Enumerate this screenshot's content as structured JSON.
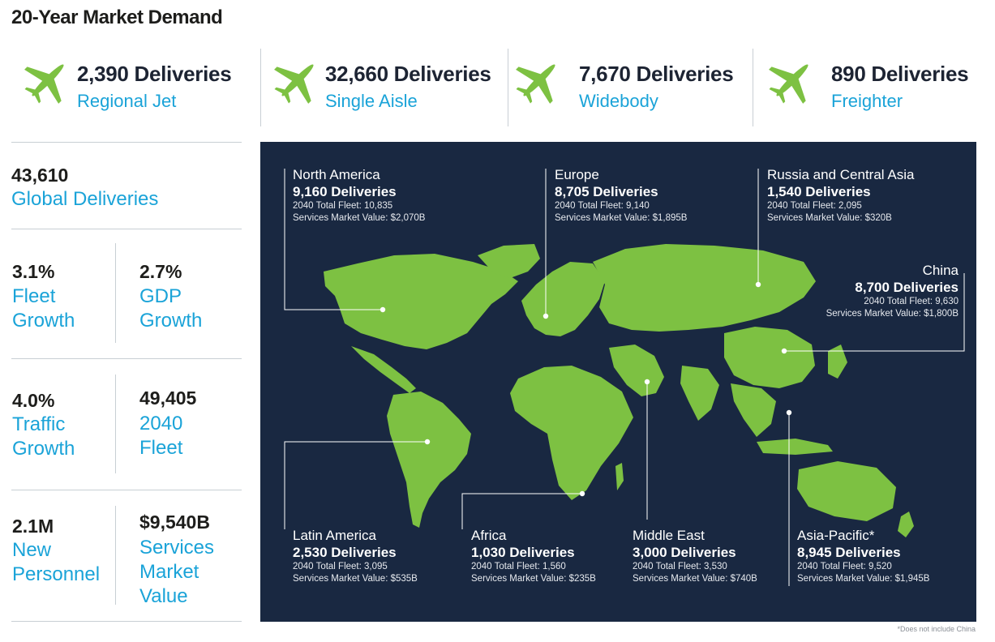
{
  "title": "20-Year Market Demand",
  "categories": [
    {
      "deliveries": "2,390 Deliveries",
      "label": "Regional Jet"
    },
    {
      "deliveries": "32,660 Deliveries",
      "label": "Single Aisle"
    },
    {
      "deliveries": "7,670 Deliveries",
      "label": "Widebody"
    },
    {
      "deliveries": "890 Deliveries",
      "label": "Freighter"
    }
  ],
  "stats": {
    "global": {
      "value": "43,610",
      "label": "Global Deliveries"
    },
    "fleet_growth": {
      "value": "3.1%",
      "line1": "Fleet",
      "line2": "Growth"
    },
    "gdp_growth": {
      "value": "2.7%",
      "line1": "GDP",
      "line2": "Growth"
    },
    "traffic_growth": {
      "value": "4.0%",
      "line1": "Traffic",
      "line2": "Growth"
    },
    "fleet_2040": {
      "value": "49,405",
      "line1": "2040",
      "line2": "Fleet"
    },
    "personnel": {
      "value": "2.1M",
      "line1": "New",
      "line2": "Personnel"
    },
    "services": {
      "value": "$9,540B",
      "line1": "Services",
      "line2": "Market",
      "line3": "Value"
    }
  },
  "regions": {
    "north_america": {
      "name": "North America",
      "deliveries": "9,160 Deliveries",
      "fleet": "2040 Total Fleet: 10,835",
      "services": "Services Market Value: $2,070B"
    },
    "europe": {
      "name": "Europe",
      "deliveries": "8,705 Deliveries",
      "fleet": "2040 Total Fleet: 9,140",
      "services": "Services Market Value: $1,895B"
    },
    "russia": {
      "name": "Russia and Central Asia",
      "deliveries": "1,540 Deliveries",
      "fleet": "2040 Total Fleet: 2,095",
      "services": "Services Market Value: $320B"
    },
    "china": {
      "name": "China",
      "deliveries": "8,700 Deliveries",
      "fleet": "2040 Total Fleet: 9,630",
      "services": "Services Market Value: $1,800B"
    },
    "latin_america": {
      "name": "Latin America",
      "deliveries": "2,530 Deliveries",
      "fleet": "2040 Total Fleet: 3,095",
      "services": "Services Market Value: $535B"
    },
    "africa": {
      "name": "Africa",
      "deliveries": "1,030 Deliveries",
      "fleet": "2040 Total Fleet: 1,560",
      "services": "Services Market Value: $235B"
    },
    "middle_east": {
      "name": "Middle East",
      "deliveries": "3,000 Deliveries",
      "fleet": "2040 Total Fleet: 3,530",
      "services": "Services Market Value: $740B"
    },
    "asia_pacific": {
      "name": "Asia-Pacific*",
      "deliveries": "8,945 Deliveries",
      "fleet": "2040 Total Fleet: 9,520",
      "services": "Services Market Value: $1,945B"
    }
  },
  "footnote": "*Does not include China",
  "colors": {
    "accent_blue": "#1aa3d8",
    "land_green": "#7dc142",
    "map_background": "#192841",
    "heading": "#1d2433"
  }
}
